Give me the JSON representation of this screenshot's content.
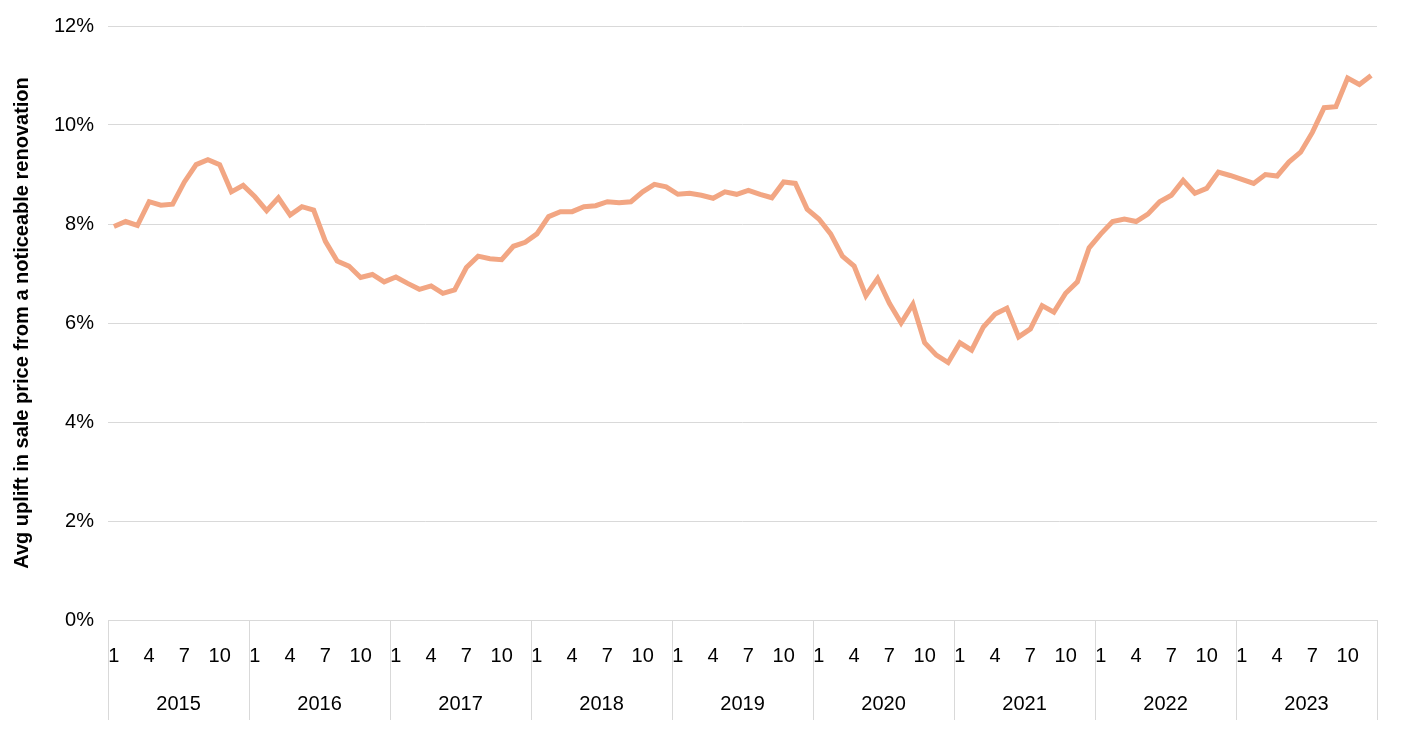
{
  "chart_data": {
    "type": "line",
    "y_label": "Avg uplift in sale price from a noticeable renovation",
    "categories": [
      "1",
      null,
      null,
      "4",
      null,
      null,
      "7",
      null,
      null,
      "10",
      null,
      null,
      "1",
      null,
      null,
      "4",
      null,
      null,
      "7",
      null,
      null,
      "10",
      null,
      null,
      "1",
      null,
      null,
      "4",
      null,
      null,
      "7",
      null,
      null,
      "10",
      null,
      null,
      "1",
      null,
      null,
      "4",
      null,
      null,
      "7",
      null,
      null,
      "10",
      null,
      null,
      "1",
      null,
      null,
      "4",
      null,
      null,
      "7",
      null,
      null,
      "10",
      null,
      null,
      "1",
      null,
      null,
      "4",
      null,
      null,
      "7",
      null,
      null,
      "10",
      null,
      null,
      "1",
      null,
      null,
      "4",
      null,
      null,
      "7",
      null,
      null,
      "10",
      null,
      null,
      "1",
      null,
      null,
      "4",
      null,
      null,
      "7",
      null,
      null,
      "10",
      null,
      null,
      "1",
      null,
      null,
      "4",
      null,
      null,
      "7",
      null,
      null,
      "10",
      null,
      null
    ],
    "groups": [
      "2015",
      "2016",
      "2017",
      "2018",
      "2019",
      "2020",
      "2021",
      "2022",
      "2023"
    ],
    "values": [
      7.95,
      8.05,
      7.97,
      8.45,
      8.38,
      8.4,
      8.85,
      9.2,
      9.3,
      9.2,
      8.65,
      8.78,
      8.55,
      8.27,
      8.53,
      8.18,
      8.35,
      8.28,
      7.65,
      7.25,
      7.15,
      6.92,
      6.98,
      6.83,
      6.93,
      6.8,
      6.68,
      6.75,
      6.6,
      6.67,
      7.12,
      7.35,
      7.3,
      7.28,
      7.55,
      7.63,
      7.8,
      8.15,
      8.25,
      8.25,
      8.35,
      8.37,
      8.45,
      8.43,
      8.45,
      8.65,
      8.8,
      8.75,
      8.6,
      8.62,
      8.58,
      8.52,
      8.65,
      8.6,
      8.68,
      8.6,
      8.53,
      8.85,
      8.82,
      8.3,
      8.1,
      7.8,
      7.35,
      7.15,
      6.55,
      6.9,
      6.4,
      6.0,
      6.38,
      5.6,
      5.35,
      5.2,
      5.6,
      5.45,
      5.92,
      6.18,
      6.3,
      5.72,
      5.88,
      6.35,
      6.22,
      6.6,
      6.83,
      7.52,
      7.8,
      8.05,
      8.1,
      8.05,
      8.2,
      8.45,
      8.58,
      8.88,
      8.62,
      8.72,
      9.05,
      8.98,
      8.9,
      8.82,
      9.0,
      8.97,
      9.25,
      9.45,
      9.85,
      10.35,
      10.37,
      10.95,
      10.82,
      11.0
    ],
    "color": "#f2a683",
    "ylim": [
      0,
      12
    ],
    "yticks": [
      {
        "value": 0,
        "label": "0%"
      },
      {
        "value": 2,
        "label": "2%"
      },
      {
        "value": 4,
        "label": "4%"
      },
      {
        "value": 6,
        "label": "6%"
      },
      {
        "value": 8,
        "label": "8%"
      },
      {
        "value": 10,
        "label": "10%"
      },
      {
        "value": 12,
        "label": "12%"
      }
    ],
    "grid": true
  }
}
